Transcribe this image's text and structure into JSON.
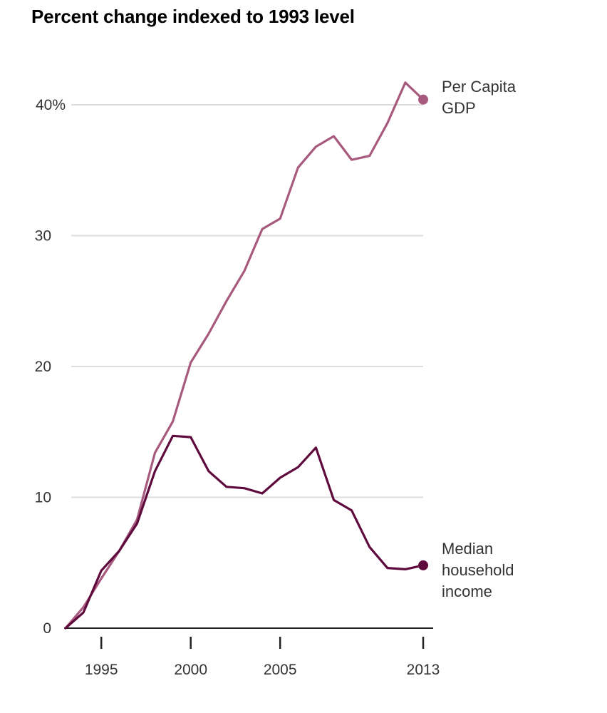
{
  "chart_data": {
    "type": "line",
    "title": "Percent change indexed to 1993 level",
    "xlabel": "",
    "ylabel": "",
    "xlim": [
      1993,
      2013
    ],
    "ylim": [
      0,
      44
    ],
    "x_ticks": [
      {
        "value": 1995,
        "label": "1995"
      },
      {
        "value": 2000,
        "label": "2000"
      },
      {
        "value": 2005,
        "label": "2005"
      },
      {
        "value": 2013,
        "label": "2013"
      }
    ],
    "y_ticks": [
      {
        "value": 0,
        "label": "0"
      },
      {
        "value": 10,
        "label": "10"
      },
      {
        "value": 20,
        "label": "20"
      },
      {
        "value": 30,
        "label": "30"
      },
      {
        "value": 40,
        "label": "40%"
      }
    ],
    "grid": true,
    "x": [
      1993,
      1994,
      1995,
      1996,
      1997,
      1998,
      1999,
      2000,
      2001,
      2002,
      2003,
      2004,
      2005,
      2006,
      2007,
      2008,
      2009,
      2010,
      2011,
      2012,
      2013
    ],
    "series": [
      {
        "name": "Per Capita GDP",
        "label_lines": [
          "Per Capita",
          "GDP"
        ],
        "color": "#a85a7e",
        "values": [
          0,
          1.6,
          3.8,
          5.9,
          8.3,
          13.4,
          15.8,
          20.3,
          22.5,
          25.0,
          27.3,
          30.5,
          31.3,
          35.2,
          36.8,
          37.6,
          35.8,
          36.1,
          38.6,
          41.7,
          40.4
        ]
      },
      {
        "name": "Median household income",
        "label_lines": [
          "Median",
          "household",
          "income"
        ],
        "color": "#5e0a3c",
        "values": [
          0,
          1.2,
          4.4,
          5.9,
          8.0,
          12.0,
          14.7,
          14.6,
          12.0,
          10.8,
          10.7,
          10.3,
          11.5,
          12.3,
          13.8,
          9.8,
          9.0,
          6.2,
          4.6,
          4.5,
          4.8
        ]
      }
    ]
  }
}
